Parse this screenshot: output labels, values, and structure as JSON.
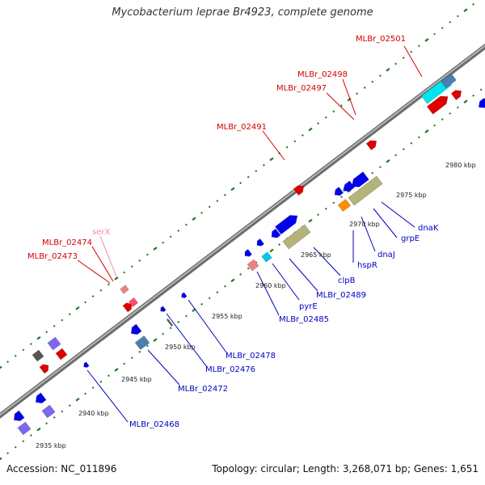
{
  "title": "Mycobacterium leprae Br4923, complete genome",
  "footer": {
    "accession": "Accession: NC_011896",
    "summary": "Topology: circular; Length: 3,268,071 bp; Genes: 1,651"
  },
  "colors": {
    "backbone": "#8a8a8a",
    "tick": "#1e7a1e",
    "upper_label": "#d40000",
    "lower_label": "#0000c0",
    "trna_label": "#f08aa6"
  },
  "kbp_labels": [
    "2935 kbp",
    "2940 kbp",
    "2945 kbp",
    "2950 kbp",
    "2955 kbp",
    "2960 kbp",
    "2965 kbp",
    "2970 kbp",
    "2975 kbp",
    "2980 kbp"
  ],
  "upper_labels": [
    "MLBr_02501",
    "MLBr_02498",
    "MLBr_02497",
    "MLBr_02491",
    "serX",
    "MLBr_02474",
    "MLBr_02473"
  ],
  "lower_labels": [
    "dnaK",
    "grpE",
    "dnaJ",
    "hspR",
    "clpB",
    "MLBr_02489",
    "pyrE",
    "MLBr_02485",
    "MLBr_02478",
    "MLBr_02476",
    "MLBr_02472",
    "MLBr_02468"
  ]
}
